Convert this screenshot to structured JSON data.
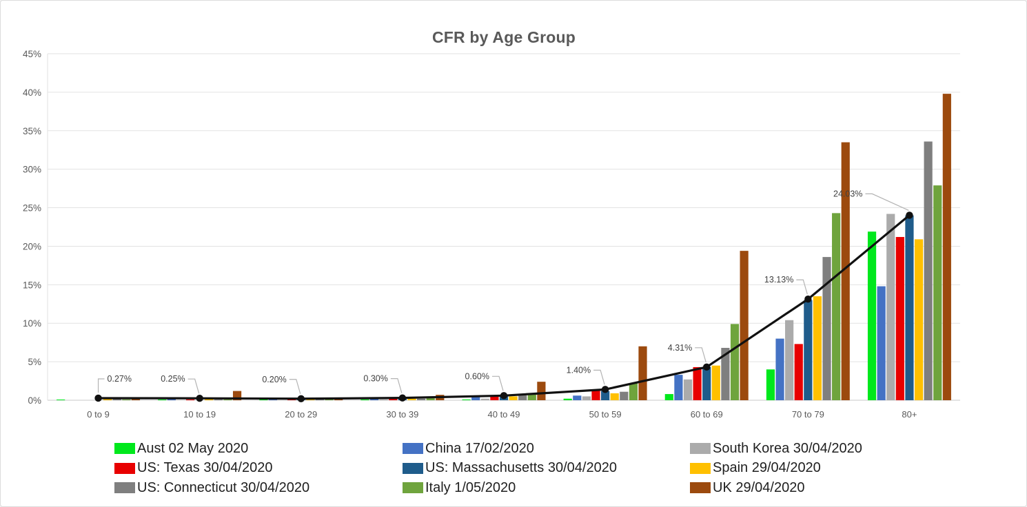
{
  "chart_data": {
    "type": "bar",
    "title": "CFR by Age Group",
    "categories": [
      "0 to 9",
      "10 to 19",
      "20 to 29",
      "30 to 39",
      "40 to 49",
      "50 to 59",
      "60 to 69",
      "70 to 79",
      "80+"
    ],
    "series": [
      {
        "name": "Aust 02 May 2020",
        "color": "#00e81c",
        "values": [
          0.05,
          0.05,
          0.1,
          0.1,
          0.1,
          0.2,
          0.8,
          4.0,
          21.9
        ]
      },
      {
        "name": "China 17/02/2020",
        "color": "#4472c4",
        "values": [
          0.0,
          0.2,
          0.1,
          0.2,
          0.4,
          0.6,
          3.3,
          8.0,
          14.8
        ]
      },
      {
        "name": "South Korea 30/04/2020",
        "color": "#ababab",
        "values": [
          0.0,
          0.0,
          0.0,
          0.1,
          0.2,
          0.5,
          2.7,
          10.4,
          24.2
        ]
      },
      {
        "name": "US: Texas 30/04/2020",
        "color": "#e80000",
        "values": [
          0.0,
          0.1,
          0.1,
          0.3,
          0.5,
          1.3,
          4.3,
          7.3,
          21.2
        ]
      },
      {
        "name": "US: Massachusetts 30/04/2020",
        "color": "#1f5c8b",
        "values": [
          0.0,
          0.0,
          0.1,
          0.2,
          0.6,
          1.2,
          4.3,
          13.0,
          24.0
        ]
      },
      {
        "name": "Spain 29/04/2020",
        "color": "#ffc000",
        "values": [
          0.2,
          0.2,
          0.2,
          0.2,
          0.5,
          0.9,
          4.5,
          13.5,
          20.9
        ]
      },
      {
        "name": "US: Connecticut 30/04/2020",
        "color": "#7f7f7f",
        "values": [
          0.2,
          0.1,
          0.1,
          0.2,
          0.7,
          1.1,
          6.8,
          18.6,
          33.6
        ]
      },
      {
        "name": "Italy 1/05/2020",
        "color": "#6fa43d",
        "values": [
          0.1,
          0.05,
          0.1,
          0.3,
          0.9,
          2.2,
          9.9,
          24.3,
          27.9
        ]
      },
      {
        "name": "UK 29/04/2020",
        "color": "#9c4a0e",
        "values": [
          0.2,
          1.2,
          0.3,
          0.7,
          2.4,
          7.0,
          19.4,
          33.5,
          39.8
        ]
      }
    ],
    "line_overlay": {
      "color": "#111111",
      "values": [
        0.27,
        0.25,
        0.2,
        0.3,
        0.6,
        1.4,
        4.31,
        13.13,
        24.03
      ],
      "data_labels": [
        "0.27%",
        "0.25%",
        "0.20%",
        "0.30%",
        "0.60%",
        "1.40%",
        "4.31%",
        "13.13%",
        "24.03%"
      ]
    },
    "xlabel": "",
    "ylabel": "",
    "ylim": [
      0,
      45
    ],
    "ytick_labels": [
      "0%",
      "5%",
      "10%",
      "15%",
      "20%",
      "25%",
      "30%",
      "35%",
      "40%",
      "45%"
    ],
    "grid": true,
    "legend_position": "bottom",
    "legend_order_note": "row-major: Aust, China, South Korea / Texas, Massachusetts, Spain / Connecticut, Italy, UK"
  }
}
